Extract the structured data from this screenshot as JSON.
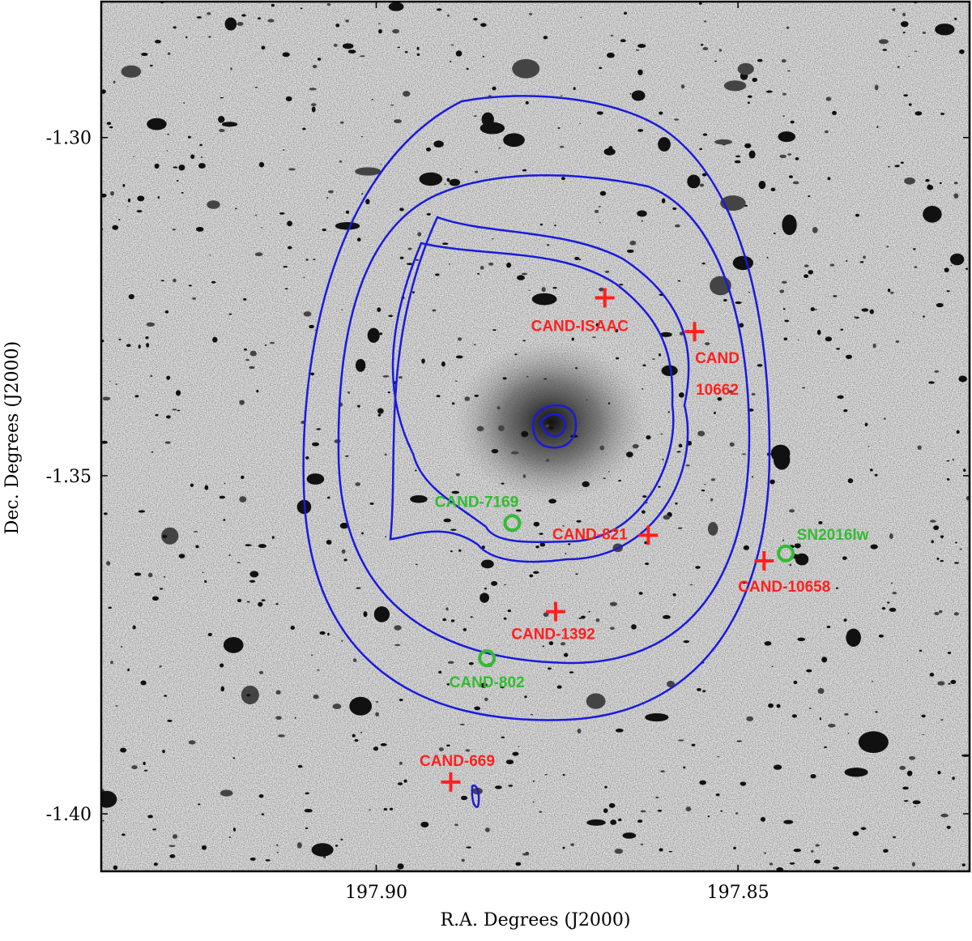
{
  "chart_data": {
    "type": "scatter",
    "x_label": "R.A. Degrees (J2000)",
    "y_label": "Dec. Degrees (J2000)",
    "xlim": [
      197.938,
      197.818
    ],
    "ylim": [
      -1.4085,
      -1.2799
    ],
    "xticks": [
      {
        "value": 197.9,
        "label": "197.90"
      },
      {
        "value": 197.85,
        "label": "197.85"
      }
    ],
    "yticks": [
      {
        "value": -1.3,
        "label": "-1.30"
      },
      -1.35,
      {
        "value": -1.4,
        "label": "-1.40"
      }
    ],
    "points": [
      {
        "label": [
          "CAND-ISAAC"
        ],
        "x": 197.8684,
        "y": -1.3237,
        "marker": "plus",
        "color": "#ff2020"
      },
      {
        "label": [
          "CAND",
          "10662"
        ],
        "x": 197.856,
        "y": -1.3287,
        "marker": "plus",
        "color": "#ff2020"
      },
      {
        "label": [
          "CAND-821"
        ],
        "x": 197.8624,
        "y": -1.3588,
        "marker": "plus",
        "color": "#ff2020"
      },
      {
        "label": [
          "CAND-10658"
        ],
        "x": 197.8464,
        "y": -1.3626,
        "marker": "plus",
        "color": "#ff2020"
      },
      {
        "label": [
          "CAND-1392"
        ],
        "x": 197.8752,
        "y": -1.3701,
        "marker": "plus",
        "color": "#ff2020"
      },
      {
        "label": [
          "CAND-669"
        ],
        "x": 197.8897,
        "y": -1.3953,
        "marker": "plus",
        "color": "#ff2020"
      },
      {
        "label": [
          "CAND-7169"
        ],
        "x": 197.8812,
        "y": -1.357,
        "marker": "circle",
        "color": "#33bb33"
      },
      {
        "label": [
          "SN2016lw"
        ],
        "x": 197.8434,
        "y": -1.3615,
        "marker": "circle",
        "color": "#33bb33"
      },
      {
        "label": [
          "CAND-802"
        ],
        "x": 197.8847,
        "y": -1.377,
        "marker": "circle",
        "color": "#33bb33"
      }
    ]
  }
}
